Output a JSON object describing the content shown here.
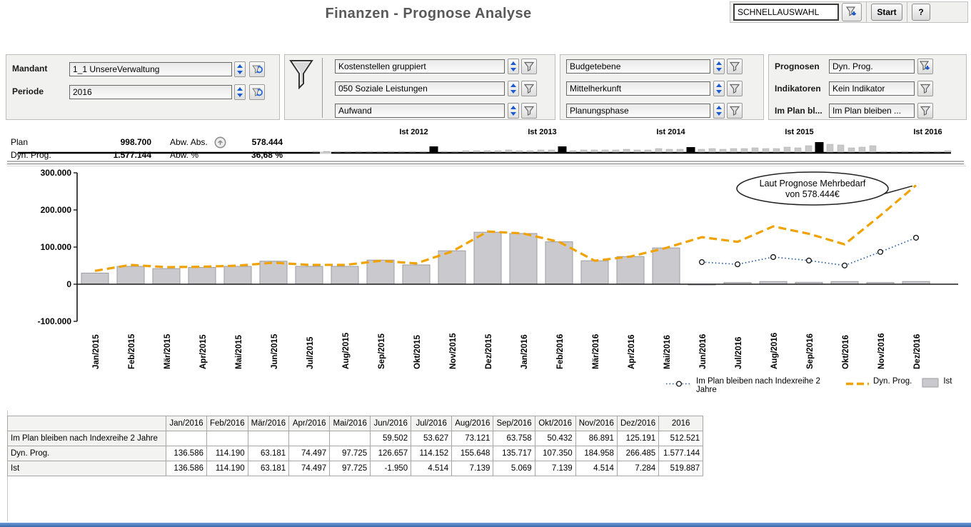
{
  "header": {
    "title": "Finanzen - Prognose Analyse",
    "quick_select_value": "SCHNELLAUSWAHL",
    "start_label": "Start",
    "help_label": "?"
  },
  "filters": {
    "mandant_label": "Mandant",
    "mandant_value": "1_1 UnsereVerwaltung",
    "periode_label": "Periode",
    "periode_value": "2016",
    "dimension_fields": [
      "Kostenstellen gruppiert",
      "050 Soziale Leistungen",
      "Aufwand"
    ],
    "budget_fields": [
      "Budgetebene",
      "Mittelherkunft",
      "Planungsphase"
    ],
    "prognosen_label": "Prognosen",
    "prognosen_value": "Dyn. Prog.",
    "indikatoren_label": "Indikatoren",
    "indikatoren_value": "Kein Indikator",
    "implan_label": "Im Plan bl...",
    "implan_value": "Im Plan bleiben ..."
  },
  "kpis": {
    "plan_label": "Plan",
    "plan_value": "998.700",
    "dyn_label": "Dyn. Prog.",
    "dyn_value": "1.577.144",
    "abw_abs_label": "Abw. Abs.",
    "abw_abs_value": "578.444",
    "abw_pct_label": "Abw. %",
    "abw_pct_value": "36,68 %"
  },
  "timeline": {
    "labels": [
      "Ist 2012",
      "Ist 2013",
      "Ist 2014",
      "Ist 2015",
      "Ist 2016"
    ],
    "bars": [
      1,
      1,
      1,
      1,
      1,
      1,
      1,
      1,
      1,
      1,
      1,
      8,
      1,
      1,
      2,
      2,
      2,
      2,
      3,
      2,
      2,
      3,
      3,
      8,
      2,
      3,
      3,
      3,
      3,
      4,
      3,
      3,
      5,
      4,
      4,
      7,
      4,
      5,
      4,
      5,
      5,
      6,
      5,
      5,
      7,
      6,
      9,
      14,
      11,
      10,
      6,
      7,
      9,
      1,
      1,
      1,
      1,
      1,
      1,
      2
    ],
    "black_indices": [
      11,
      23,
      35,
      47
    ]
  },
  "chart_data": {
    "type": "combo",
    "x": [
      "Jan/2015",
      "Feb/2015",
      "Mär/2015",
      "Apr/2015",
      "Mai/2015",
      "Jun/2015",
      "Jul/2015",
      "Aug/2015",
      "Sep/2015",
      "Okt/2015",
      "Nov/2015",
      "Dez/2015",
      "Jan/2016",
      "Feb/2016",
      "Mär/2016",
      "Apr/2016",
      "Mai/2016",
      "Jun/2016",
      "Jul/2016",
      "Aug/2016",
      "Sep/2016",
      "Okt/2016",
      "Nov/2016",
      "Dez/2016"
    ],
    "ylim": [
      -100000,
      300000
    ],
    "yticks": [
      {
        "label": "300.000",
        "value": 300000
      },
      {
        "label": "200.000",
        "value": 200000
      },
      {
        "label": "100.000",
        "value": 100000
      },
      {
        "label": "0",
        "value": 0
      },
      {
        "label": "-100.000",
        "value": -100000
      }
    ],
    "series": [
      {
        "name": "Ist",
        "type": "bar",
        "color": "#cacace",
        "values": [
          30000,
          48000,
          42000,
          45000,
          48000,
          62000,
          48000,
          48000,
          65000,
          52000,
          90000,
          140000,
          136586,
          114190,
          63181,
          74497,
          97725,
          -1950,
          4514,
          7139,
          5069,
          7139,
          4514,
          7284
        ]
      },
      {
        "name": "Dyn. Prog.",
        "type": "line-dashed",
        "color": "#f0a202",
        "values": [
          36000,
          52000,
          46000,
          47000,
          50000,
          58000,
          52000,
          52000,
          63000,
          56000,
          88000,
          142000,
          136586,
          114190,
          63181,
          74497,
          97725,
          126657,
          114152,
          155648,
          135717,
          107350,
          184958,
          266485
        ]
      },
      {
        "name": "Im Plan bleiben nach Indexreihe 2 Jahre",
        "type": "line-dotted",
        "color": "#1e5aa0",
        "values": [
          null,
          null,
          null,
          null,
          null,
          null,
          null,
          null,
          null,
          null,
          null,
          null,
          null,
          null,
          null,
          null,
          null,
          59502,
          53627,
          73121,
          63758,
          50432,
          86891,
          125191
        ]
      }
    ],
    "annotation": {
      "line1": "Laut Prognose Mehrbedarf",
      "line2": "von 578.444€",
      "target_index": 23
    }
  },
  "legend": {
    "items": [
      {
        "label": "Im Plan bleiben nach Indexreihe 2 Jahre"
      },
      {
        "label": "Dyn. Prog."
      },
      {
        "label": "Ist"
      }
    ]
  },
  "table": {
    "columns": [
      "",
      "Jan/2016",
      "Feb/2016",
      "Mär/2016",
      "Apr/2016",
      "Mai/2016",
      "Jun/2016",
      "Jul/2016",
      "Aug/2016",
      "Sep/2016",
      "Okt/2016",
      "Nov/2016",
      "Dez/2016",
      "2016"
    ],
    "rows": [
      {
        "label": "Im Plan bleiben nach Indexreihe 2 Jahre",
        "cells": [
          "",
          "",
          "",
          "",
          "",
          "59.502",
          "53.627",
          "73.121",
          "63.758",
          "50.432",
          "86.891",
          "125.191",
          "512.521"
        ]
      },
      {
        "label": "Dyn. Prog.",
        "cells": [
          "136.586",
          "114.190",
          "63.181",
          "74.497",
          "97.725",
          "126.657",
          "114.152",
          "155.648",
          "135.717",
          "107.350",
          "184.958",
          "266.485",
          "1.577.144"
        ]
      },
      {
        "label": "Ist",
        "cells": [
          "136.586",
          "114.190",
          "63.181",
          "74.497",
          "97.725",
          "-1.950",
          "4.514",
          "7.139",
          "5.069",
          "7.139",
          "4.514",
          "7.284",
          "519.887"
        ]
      }
    ]
  }
}
